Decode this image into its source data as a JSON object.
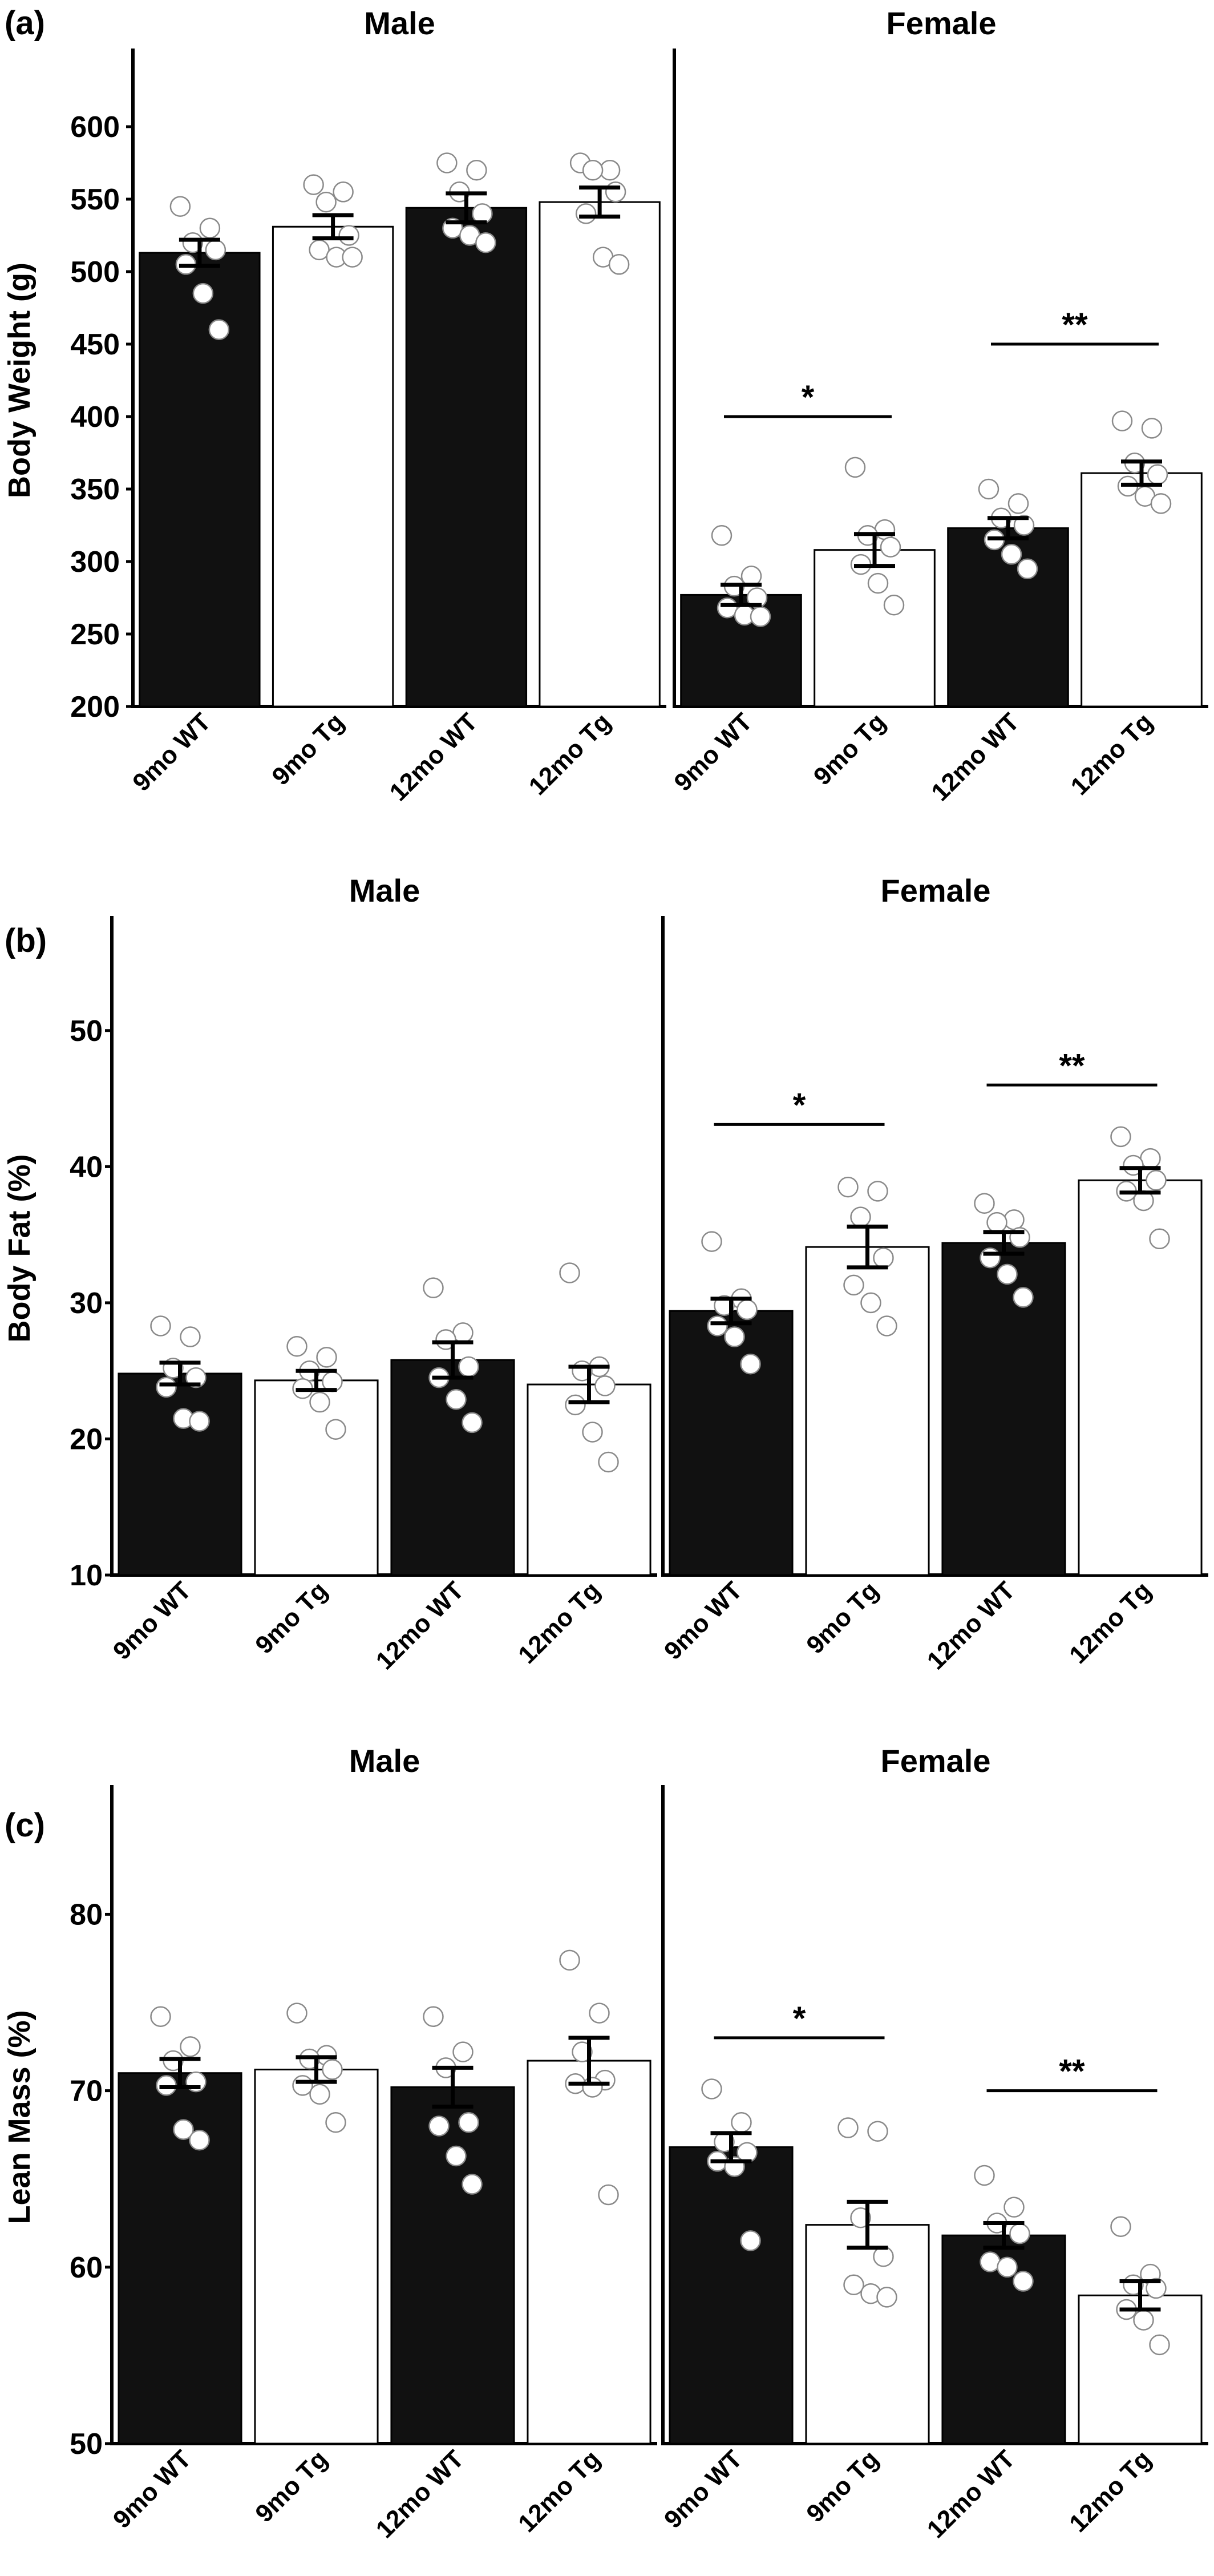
{
  "figure": {
    "panels": [
      {
        "label": "(a)",
        "ylabel": "Body Weight (g)"
      },
      {
        "label": "(b)",
        "ylabel": "Body Fat (%)"
      },
      {
        "label": "(c)",
        "ylabel": "Lean Mass (%)"
      }
    ]
  },
  "colors": {
    "wt": "#111111",
    "tg": "#ffffff",
    "stroke": "#000000"
  },
  "chart_data": [
    {
      "type": "bar",
      "panel": "(a)",
      "ylabel": "Body Weight (g)",
      "ylim": [
        200,
        650
      ],
      "yticks": [
        200,
        250,
        300,
        350,
        400,
        450,
        500,
        550,
        600
      ],
      "grid": false,
      "facets": [
        {
          "title": "Male",
          "categories": [
            "9mo WT",
            "9mo Tg",
            "12mo WT",
            "12mo Tg"
          ],
          "values": [
            513,
            531,
            544,
            548
          ],
          "errors": [
            9,
            8,
            10,
            10
          ],
          "fills": [
            "wt",
            "tg",
            "wt",
            "tg"
          ],
          "points": [
            [
              545,
              530,
              520,
              515,
              505,
              485,
              460
            ],
            [
              560,
              555,
              548,
              525,
              515,
              510,
              510
            ],
            [
              575,
              570,
              555,
              540,
              530,
              525,
              520
            ],
            [
              575,
              570,
              570,
              555,
              540,
              510,
              505
            ]
          ],
          "sig": []
        },
        {
          "title": "Female",
          "categories": [
            "9mo WT",
            "9mo Tg",
            "12mo WT",
            "12mo Tg"
          ],
          "values": [
            277,
            308,
            323,
            361
          ],
          "errors": [
            7,
            11,
            7,
            8
          ],
          "fills": [
            "wt",
            "tg",
            "wt",
            "tg"
          ],
          "points": [
            [
              318,
              290,
              283,
              275,
              268,
              263,
              262
            ],
            [
              365,
              322,
              318,
              310,
              298,
              285,
              270
            ],
            [
              350,
              340,
              330,
              325,
              315,
              305,
              295
            ],
            [
              397,
              392,
              368,
              360,
              352,
              345,
              340
            ]
          ],
          "sig": [
            {
              "from": 0,
              "to": 1,
              "y": 400,
              "label": "*"
            },
            {
              "from": 2,
              "to": 3,
              "y": 450,
              "label": "**"
            }
          ]
        }
      ]
    },
    {
      "type": "bar",
      "panel": "(b)",
      "ylabel": "Body Fat (%)",
      "ylim": [
        10,
        58
      ],
      "yticks": [
        10,
        20,
        30,
        40,
        50
      ],
      "grid": false,
      "facets": [
        {
          "title": "Male",
          "categories": [
            "9mo WT",
            "9mo Tg",
            "12mo WT",
            "12mo Tg"
          ],
          "values": [
            24.8,
            24.3,
            25.8,
            24.0
          ],
          "errors": [
            0.8,
            0.7,
            1.3,
            1.3
          ],
          "fills": [
            "wt",
            "tg",
            "wt",
            "tg"
          ],
          "points": [
            [
              28.3,
              27.5,
              25.2,
              24.5,
              23.8,
              21.5,
              21.3
            ],
            [
              26.8,
              26.0,
              25.0,
              24.2,
              23.7,
              22.7,
              20.7
            ],
            [
              31.1,
              27.8,
              27.3,
              25.3,
              24.5,
              22.9,
              21.2
            ],
            [
              32.2,
              25.3,
              25.0,
              23.9,
              22.5,
              20.5,
              18.3
            ]
          ],
          "sig": []
        },
        {
          "title": "Female",
          "categories": [
            "9mo WT",
            "9mo Tg",
            "12mo WT",
            "12mo Tg"
          ],
          "values": [
            29.4,
            34.1,
            34.4,
            39.0
          ],
          "errors": [
            0.9,
            1.5,
            0.8,
            0.9
          ],
          "fills": [
            "wt",
            "tg",
            "wt",
            "tg"
          ],
          "points": [
            [
              34.5,
              30.3,
              29.8,
              29.5,
              28.3,
              27.5,
              25.5
            ],
            [
              38.5,
              38.2,
              36.3,
              33.3,
              31.3,
              30.0,
              28.3
            ],
            [
              37.3,
              36.1,
              35.9,
              34.8,
              33.3,
              32.1,
              30.4
            ],
            [
              42.2,
              40.6,
              40.1,
              39.0,
              38.2,
              37.5,
              34.7
            ]
          ],
          "sig": [
            {
              "from": 0,
              "to": 1,
              "y": 43.1,
              "label": "*"
            },
            {
              "from": 2,
              "to": 3,
              "y": 46.0,
              "label": "**"
            }
          ]
        }
      ]
    },
    {
      "type": "bar",
      "panel": "(c)",
      "ylabel": "Lean Mass (%)",
      "ylim": [
        50,
        87
      ],
      "yticks": [
        50,
        60,
        70,
        80
      ],
      "grid": false,
      "facets": [
        {
          "title": "Male",
          "categories": [
            "9mo WT",
            "9mo Tg",
            "12mo WT",
            "12mo Tg"
          ],
          "values": [
            71.0,
            71.2,
            70.2,
            71.7
          ],
          "errors": [
            0.8,
            0.7,
            1.1,
            1.3
          ],
          "fills": [
            "wt",
            "tg",
            "wt",
            "tg"
          ],
          "points": [
            [
              74.2,
              72.5,
              71.7,
              70.5,
              70.3,
              67.8,
              67.2
            ],
            [
              74.4,
              72.0,
              71.8,
              71.2,
              70.3,
              69.8,
              68.2
            ],
            [
              74.2,
              72.2,
              71.3,
              68.2,
              68.0,
              66.3,
              64.7
            ],
            [
              77.4,
              74.4,
              72.2,
              70.6,
              70.4,
              70.2,
              64.1
            ]
          ],
          "sig": []
        },
        {
          "title": "Female",
          "categories": [
            "9mo WT",
            "9mo Tg",
            "12mo WT",
            "12mo Tg"
          ],
          "values": [
            66.8,
            62.4,
            61.8,
            58.4
          ],
          "errors": [
            0.8,
            1.3,
            0.7,
            0.8
          ],
          "fills": [
            "wt",
            "tg",
            "wt",
            "tg"
          ],
          "points": [
            [
              70.1,
              68.2,
              67.1,
              66.5,
              66.0,
              65.7,
              61.5
            ],
            [
              67.9,
              67.7,
              62.8,
              60.6,
              59.0,
              58.5,
              58.3
            ],
            [
              65.2,
              63.4,
              62.5,
              61.9,
              60.3,
              60.0,
              59.2
            ],
            [
              62.3,
              59.6,
              59.0,
              58.8,
              57.6,
              57.0,
              55.6
            ]
          ],
          "sig": [
            {
              "from": 0,
              "to": 1,
              "y": 73.0,
              "label": "*"
            },
            {
              "from": 2,
              "to": 3,
              "y": 70.0,
              "label": "**"
            }
          ]
        }
      ]
    }
  ]
}
